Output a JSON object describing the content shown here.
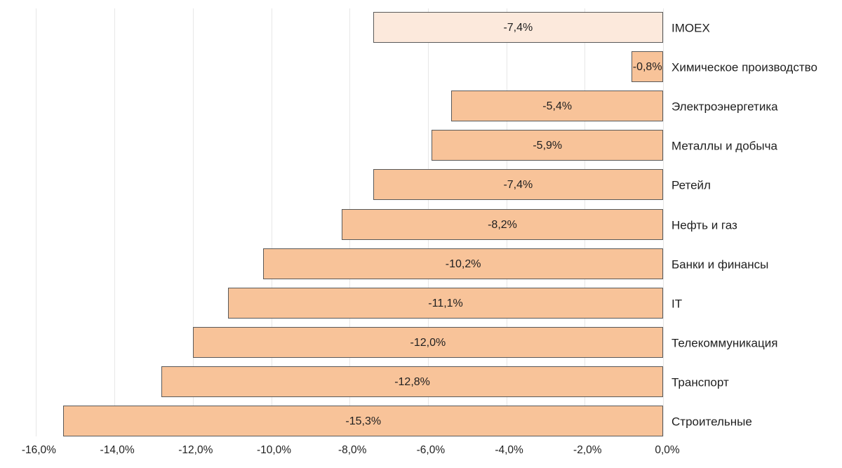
{
  "chart_data": {
    "type": "bar",
    "orientation": "horizontal",
    "title": "",
    "xlabel": "",
    "ylabel": "",
    "categories": [
      "IMOEX",
      "Химическое производство",
      "Электроэнергетика",
      "Металлы и добыча",
      "Ретейл",
      "Нефть и газ",
      "Банки и финансы",
      "IT",
      "Телекоммуникация",
      "Транспорт",
      "Строительные"
    ],
    "values": [
      -7.4,
      -0.8,
      -5.4,
      -5.9,
      -7.4,
      -8.2,
      -10.2,
      -11.1,
      -12.0,
      -12.8,
      -15.3
    ],
    "value_labels": [
      "-7,4%",
      "-0,8%",
      "-5,4%",
      "-5,9%",
      "-7,4%",
      "-8,2%",
      "-10,2%",
      "-11,1%",
      "-12,0%",
      "-12,8%",
      "-15,3%"
    ],
    "x_ticks": [
      -16,
      -14,
      -12,
      -10,
      -8,
      -6,
      -4,
      -2,
      0
    ],
    "x_tick_labels": [
      "-16,0%",
      "-14,0%",
      "-12,0%",
      "-10,0%",
      "-8,0%",
      "-6,0%",
      "-4,0%",
      "-2,0%",
      "0,0%"
    ],
    "xlim": [
      -16,
      0
    ],
    "grid": true,
    "legend": "none",
    "highlight_category": "IMOEX",
    "colors": {
      "bar_fill": "#F8C399",
      "highlight_fill": "#FCE9DC",
      "bar_border": "#595959",
      "gridline": "#E7E7E7",
      "text": "#1F1F1F"
    }
  }
}
